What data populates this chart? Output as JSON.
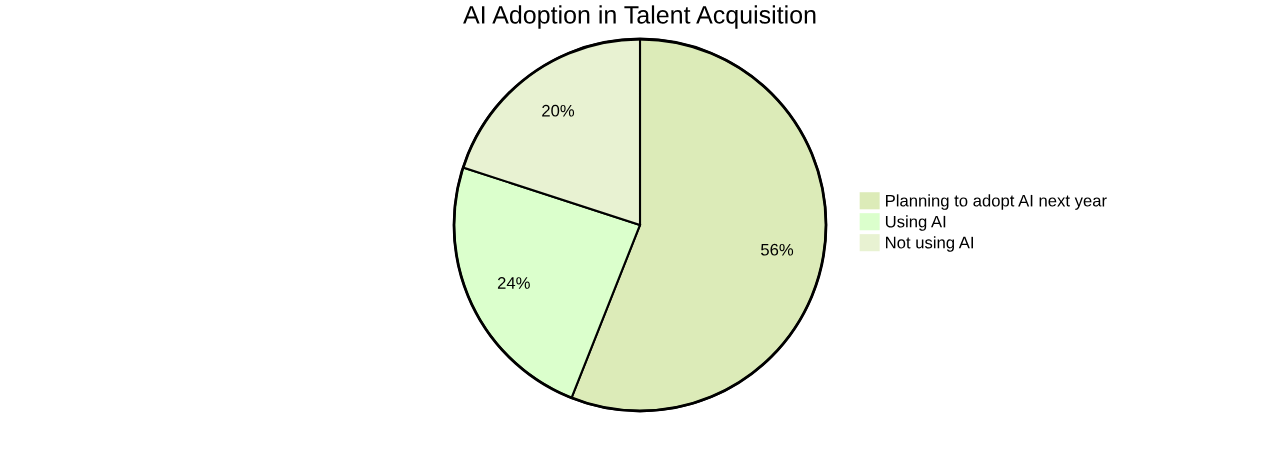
{
  "chart_data": {
    "type": "pie",
    "title": "AI Adoption in Talent Acquisition",
    "categories": [
      "Planning to adopt AI next year",
      "Using AI",
      "Not using AI"
    ],
    "values": [
      56,
      24,
      20
    ],
    "colors": [
      "#dcebb8",
      "#dbffcc",
      "#e8f2d2"
    ],
    "value_labels": [
      "56%",
      "24%",
      "20%"
    ],
    "legend": "right"
  }
}
